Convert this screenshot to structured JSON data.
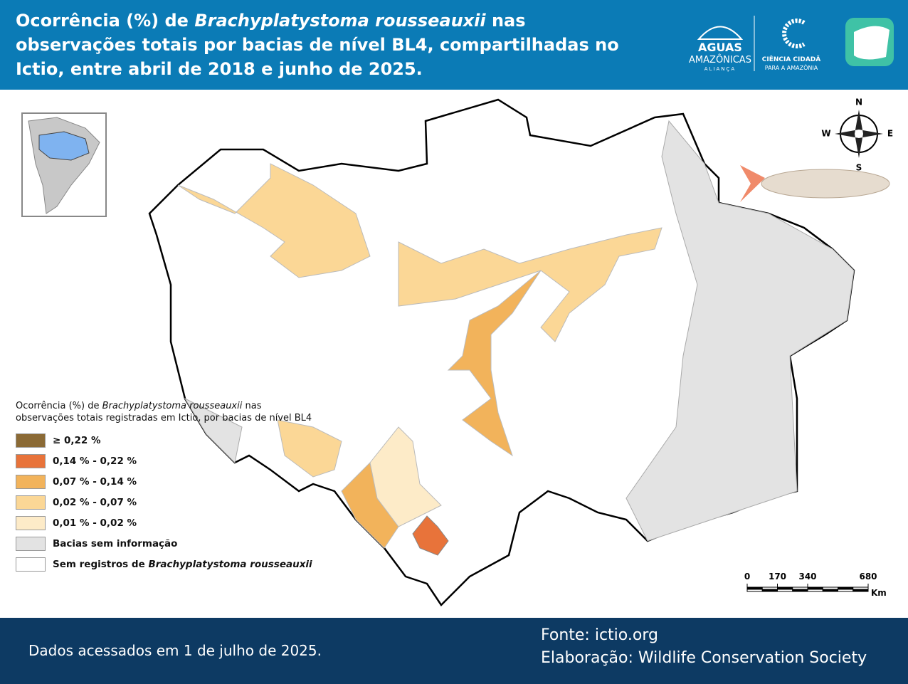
{
  "header": {
    "title_parts": [
      "Ocorrência (%) de ",
      "Brachyplatystoma rousseauxii",
      " nas observações totais por bacias de nível BL4, compartilhadas no Ictio, entre abril de 2018 e junho de 2025."
    ],
    "logo_aguas": [
      "AGUAS",
      "AMAZÔNICAS",
      "ALIANÇA"
    ],
    "logo_ciencia": [
      "CIÊNCIA CIDADÃ",
      "PARA A AMAZÔNIA"
    ]
  },
  "compass": {
    "n": "N",
    "w": "W",
    "e": "E",
    "s": "S"
  },
  "legend": {
    "title_parts": [
      "Ocorrência (%) de ",
      "Brachyplatystoma rousseauxii",
      " nas observações totais registradas em Ictio, por bacias de nível BL4"
    ],
    "items": [
      {
        "label_parts": [
          "≥ 0,22 %"
        ],
        "color": "#8b6a35"
      },
      {
        "label_parts": [
          "0,14 % - 0,22 %"
        ],
        "color": "#e8733a"
      },
      {
        "label_parts": [
          "0,07 % - 0,14 %"
        ],
        "color": "#f2b35b"
      },
      {
        "label_parts": [
          "0,02 % - 0,07 %"
        ],
        "color": "#fbd796"
      },
      {
        "label_parts": [
          "0,01 % - 0,02 %"
        ],
        "color": "#fdebc8"
      },
      {
        "label_parts": [
          "Bacias sem informação"
        ],
        "color": "#e3e3e3"
      },
      {
        "label_parts": [
          "Sem registros de ",
          "Brachyplatystoma rousseauxii"
        ],
        "color": "#ffffff"
      }
    ]
  },
  "scale_bar": {
    "ticks": [
      0,
      170,
      340,
      680
    ],
    "unit": "Km"
  },
  "footer": {
    "accessed": "Dados acessados em 1 de julho de 2025.",
    "source": "Fonte: ictio.org",
    "credit": "Elaboração: Wildlife Conservation Society"
  }
}
